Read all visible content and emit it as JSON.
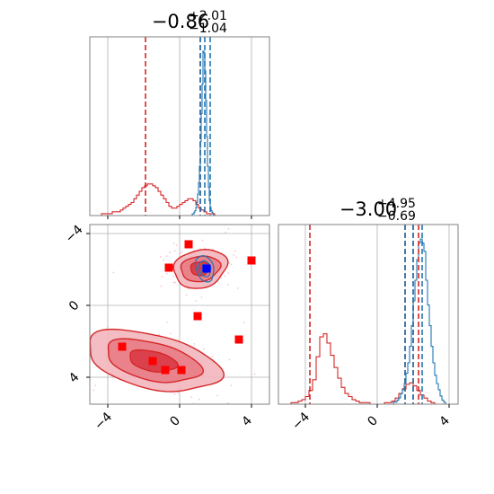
{
  "chart_data": {
    "type": "corner",
    "grid": true,
    "colors": {
      "series_red": "#d62728",
      "series_blue": "#1f77b4",
      "marker_blue": "#0000ff",
      "grid": "#b0b0b0",
      "axes": "#808080"
    },
    "panels": [
      {
        "id": "marginal-x",
        "type": "histogram",
        "title": {
          "value": "−0.86",
          "upper": "+2.01",
          "lower": "−1.04"
        },
        "xlim": [
          -5,
          5
        ],
        "xticks": [
          -4,
          0,
          4
        ],
        "tick_labels_shown": false,
        "red_quantile_lines": [
          -1.9,
          1.15
        ],
        "blue_quantile_lines": [
          1.15,
          1.4,
          1.7
        ],
        "red_hist": {
          "bin_start": -4.5,
          "bin_width": 0.15,
          "counts": [
            0,
            1,
            1,
            1,
            1,
            2,
            2,
            2,
            3,
            4,
            5,
            6,
            7,
            9,
            11,
            13,
            15,
            16,
            17,
            17,
            16,
            15,
            13,
            11,
            9,
            7,
            5,
            4,
            4,
            5,
            6,
            7,
            8,
            9,
            9,
            8,
            6,
            4,
            3,
            2,
            1,
            1,
            1
          ]
        },
        "blue_hist": {
          "bin_start": 0.6,
          "bin_width": 0.05,
          "counts": [
            0,
            0,
            1,
            1,
            2,
            3,
            5,
            8,
            13,
            20,
            30,
            45,
            62,
            80,
            100,
            99,
            88,
            70,
            48,
            30,
            17,
            9,
            5,
            3,
            2,
            1,
            0,
            0
          ]
        }
      },
      {
        "id": "joint",
        "type": "contour",
        "xlim": [
          -5,
          5
        ],
        "ylim": [
          -5.5,
          4.5
        ],
        "xticks": [
          -4,
          0,
          4
        ],
        "yticks": [
          -4,
          0,
          4
        ],
        "xtick_labels": [
          "−4",
          "0",
          "4"
        ],
        "ytick_labels": [
          "4",
          "0",
          "−4"
        ],
        "red_modes": [
          {
            "cx": 1.15,
            "cy": 2.05,
            "levels": [
              [
                1.5,
                1.05,
                0.25
              ],
              [
                1.1,
                0.7,
                0.15
              ],
              [
                0.55,
                0.38,
                0.05
              ]
            ]
          },
          {
            "cx": -1.5,
            "cy": -3.1,
            "levels": [
              [
                3.8,
                1.5,
                -0.23
              ],
              [
                2.7,
                1.05,
                -0.23
              ],
              [
                1.35,
                0.55,
                -0.2
              ]
            ]
          }
        ],
        "blue_mode": {
          "cx": 1.4,
          "cy": 2.05,
          "levels": [
            [
              0.48,
              0.75,
              0.3
            ],
            [
              0.32,
              0.45,
              0.3
            ],
            [
              0.16,
              0.24,
              0.3
            ]
          ]
        },
        "red_points": [
          [
            0.5,
            3.4
          ],
          [
            -0.6,
            2.1
          ],
          [
            4.0,
            2.5
          ],
          [
            1.0,
            -0.6
          ],
          [
            3.3,
            -1.9
          ],
          [
            -3.2,
            -2.3
          ],
          [
            -1.5,
            -3.1
          ],
          [
            -0.8,
            -3.6
          ],
          [
            0.1,
            -3.6
          ]
        ],
        "blue_point": [
          1.5,
          2.05
        ]
      },
      {
        "id": "marginal-y",
        "type": "histogram",
        "title": {
          "value": "−3.00",
          "upper": "+4.95",
          "lower": "−0.69"
        },
        "xlim": [
          -5.5,
          4.5
        ],
        "xticks": [
          -4,
          0,
          4
        ],
        "xtick_labels": [
          "−4",
          "0",
          "4"
        ],
        "red_quantile_lines": [
          -3.75,
          1.55,
          2.0,
          2.3
        ],
        "blue_quantile_lines": [
          1.55,
          2.0,
          2.5
        ],
        "red_hist": {
          "bin_start": -5.0,
          "bin_width": 0.2,
          "counts": [
            0,
            1,
            1,
            2,
            3,
            5,
            9,
            16,
            31,
            44,
            46,
            40,
            32,
            24,
            17,
            11,
            7,
            5,
            3,
            2,
            1,
            1,
            1,
            0,
            0,
            0,
            0,
            1,
            1,
            2,
            4,
            7,
            10,
            13,
            14,
            12,
            9,
            6,
            4,
            2,
            1,
            0
          ]
        },
        "blue_hist": {
          "bin_start": 0.8,
          "bin_width": 0.1,
          "counts": [
            0,
            1,
            1,
            2,
            3,
            5,
            7,
            10,
            15,
            20,
            28,
            38,
            50,
            60,
            70,
            78,
            80,
            78,
            74,
            60,
            48,
            38,
            28,
            20,
            14,
            10,
            7,
            4,
            2,
            1,
            0
          ]
        }
      }
    ]
  }
}
